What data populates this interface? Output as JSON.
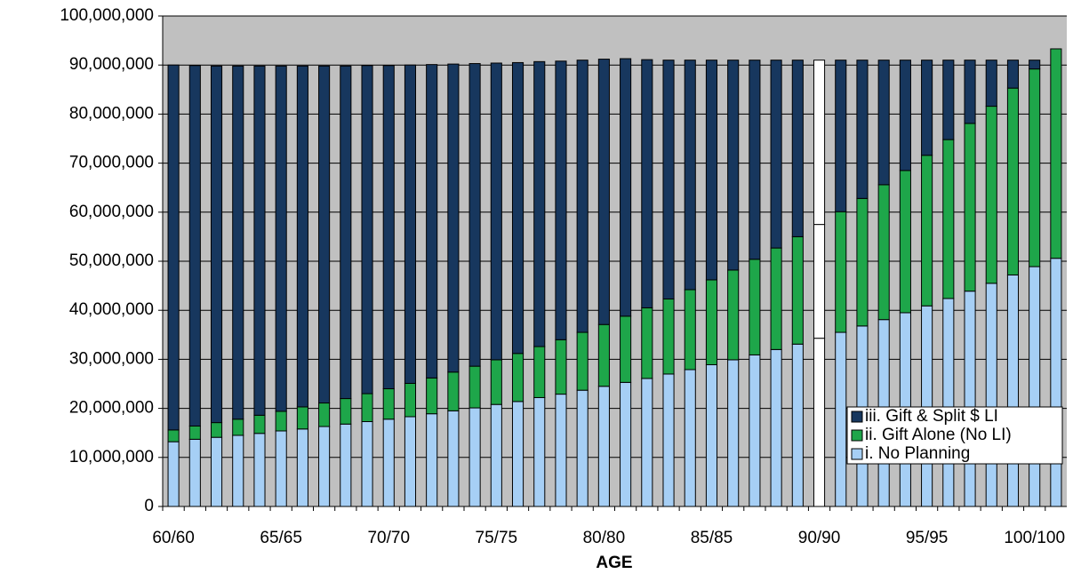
{
  "chart_data": {
    "type": "stacked_bar",
    "x_label": "AGE",
    "categories": [
      "60/60",
      null,
      null,
      null,
      null,
      "65/65",
      null,
      null,
      null,
      null,
      "70/70",
      null,
      null,
      null,
      null,
      "75/75",
      null,
      null,
      null,
      null,
      "80/80",
      null,
      null,
      null,
      null,
      "85/85",
      null,
      null,
      null,
      null,
      "90/90",
      null,
      null,
      null,
      null,
      "95/95",
      null,
      null,
      null,
      null,
      "100/100",
      null
    ],
    "series": [
      {
        "name": "i. No Planning",
        "color": "#a6cff5",
        "values": [
          13200000,
          13700000,
          14100000,
          14500000,
          14900000,
          15400000,
          15800000,
          16300000,
          16800000,
          17300000,
          17800000,
          18300000,
          18900000,
          19500000,
          20100000,
          20800000,
          21400000,
          22200000,
          22900000,
          23700000,
          24500000,
          25300000,
          26100000,
          27000000,
          27900000,
          28900000,
          29900000,
          30900000,
          32000000,
          33100000,
          34300000,
          35500000,
          36800000,
          38100000,
          39500000,
          40900000,
          42400000,
          43900000,
          45500000,
          47200000,
          48900000,
          50600000
        ]
      },
      {
        "name": "ii. Gift Alone (No LI)",
        "color": "#1ea64a",
        "values": [
          2400000,
          2700000,
          3000000,
          3300000,
          3700000,
          4000000,
          4500000,
          4800000,
          5200000,
          5700000,
          6200000,
          6800000,
          7300000,
          7900000,
          8500000,
          9100000,
          9800000,
          10400000,
          11100000,
          11800000,
          12600000,
          13500000,
          14400000,
          15300000,
          16300000,
          17300000,
          18300000,
          19500000,
          20700000,
          21900000,
          23200000,
          24600000,
          26000000,
          27500000,
          29000000,
          30700000,
          32400000,
          34200000,
          36100000,
          38100000,
          40300000,
          42700000
        ]
      },
      {
        "name": "iii. Gift & Split $ LI",
        "color": "#17375e",
        "values": [
          74400000,
          73500000,
          72700000,
          72000000,
          71200000,
          70400000,
          69500000,
          68700000,
          67800000,
          66900000,
          65900000,
          64900000,
          63900000,
          62800000,
          61700000,
          60500000,
          59300000,
          58100000,
          56800000,
          55500000,
          54100000,
          52500000,
          50600000,
          48700000,
          46800000,
          44800000,
          42800000,
          40600000,
          38300000,
          36000000,
          33500000,
          30900000,
          28200000,
          25400000,
          22500000,
          19400000,
          16200000,
          12900000,
          9400000,
          5700000,
          1800000,
          null
        ]
      }
    ],
    "highlight": {
      "index": 30,
      "color": "#ffffff"
    },
    "ylim": [
      0,
      100000000
    ],
    "yticks": [
      0,
      {
        "value": 10000000,
        "label": "10,000,000"
      },
      {
        "value": 20000000,
        "label": "20,000,000"
      },
      {
        "value": 30000000,
        "label": "30,000,000"
      },
      {
        "value": 40000000,
        "label": "40,000,000"
      },
      {
        "value": 50000000,
        "label": "50,000,000"
      },
      {
        "value": 60000000,
        "label": "60,000,000"
      },
      {
        "value": 70000000,
        "label": "70,000,000"
      },
      {
        "value": 80000000,
        "label": "80,000,000"
      },
      {
        "value": 90000000,
        "label": "90,000,000"
      },
      {
        "value": 100000000,
        "label": "100,000,000"
      }
    ],
    "grid": true,
    "legend": "lower right",
    "background": "#c0c0c0"
  }
}
